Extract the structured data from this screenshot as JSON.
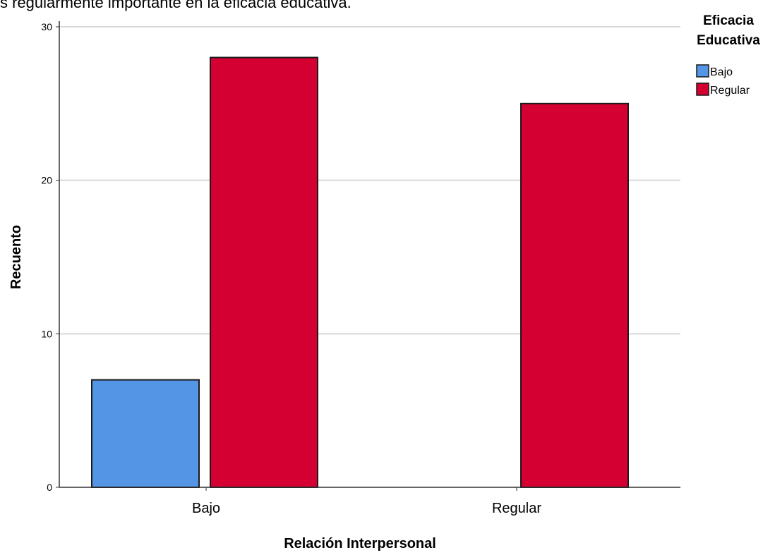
{
  "caption_fragment": "s regularmente importante en la eficacia educativa.",
  "chart_data": {
    "type": "bar",
    "categories": [
      "Bajo",
      "Regular"
    ],
    "series": [
      {
        "name": "Bajo",
        "values": [
          7,
          0
        ],
        "color": "#5595E5"
      },
      {
        "name": "Regular",
        "values": [
          28,
          25
        ],
        "color": "#D50032"
      }
    ],
    "xlabel": "Relación Interpersonal",
    "ylabel": "Recuento",
    "ylim": [
      0,
      30
    ],
    "yticks": [
      0,
      10,
      20,
      30
    ],
    "grid": true,
    "legend": {
      "title_lines": [
        "Eficacia",
        "Educativa"
      ],
      "placement": "right"
    }
  }
}
